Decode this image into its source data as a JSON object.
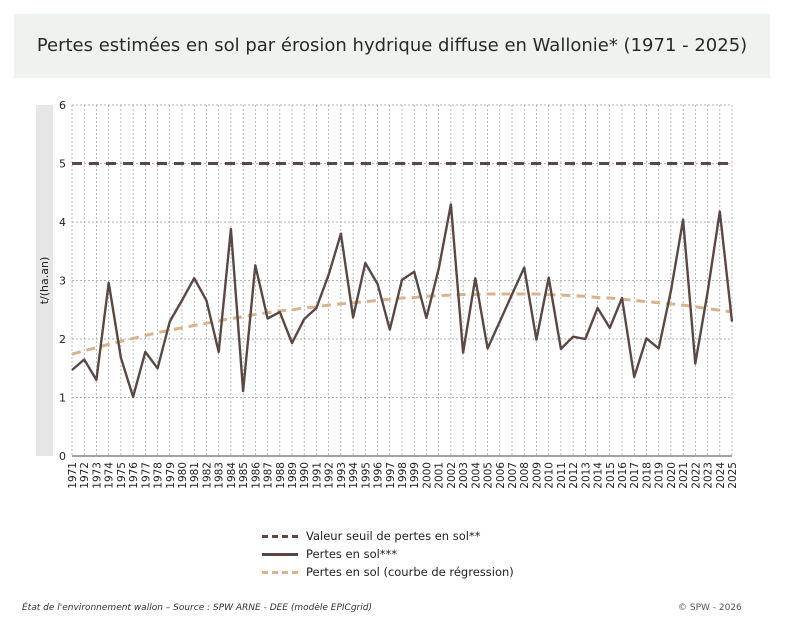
{
  "colors": {
    "background": "#ffffff",
    "title_bg": "#eef3f0",
    "threshold": "#5a4844",
    "series": "#5a4844",
    "regression": "#d8b48a",
    "ylabel_band": "#e6e6e6",
    "grid": "#9a9a9a"
  },
  "header": {
    "title": "Pertes estimées en sol par érosion hydrique diffuse en Wallonie* (1971 - 2025)"
  },
  "footer": {
    "source": "État de l'environnement wallon – Source : SPW ARNE - DEE (modèle EPICgrid)",
    "copyright": "© SPW - 2026"
  },
  "chart_data": {
    "type": "line",
    "title": "Pertes estimées en sol par érosion hydrique diffuse en Wallonie* (1971 - 2025)",
    "xlabel": "",
    "ylabel": "t/(ha.an)",
    "ylim": [
      0,
      6
    ],
    "yticks": [
      0,
      1,
      2,
      3,
      4,
      5,
      6
    ],
    "grid": true,
    "legend_position": "bottom",
    "x": [
      1971,
      1972,
      1973,
      1974,
      1975,
      1976,
      1977,
      1978,
      1979,
      1980,
      1981,
      1982,
      1983,
      1984,
      1985,
      1986,
      1987,
      1988,
      1989,
      1990,
      1991,
      1992,
      1993,
      1994,
      1995,
      1996,
      1997,
      1998,
      1999,
      2000,
      2001,
      2002,
      2003,
      2004,
      2005,
      2006,
      2007,
      2008,
      2009,
      2010,
      2011,
      2012,
      2013,
      2014,
      2015,
      2016,
      2017,
      2018,
      2019,
      2020,
      2021,
      2022,
      2023,
      2024,
      2025
    ],
    "series": [
      {
        "name": "Valeur seuil de pertes en sol**",
        "style": "dashed",
        "values": [
          5,
          5,
          5,
          5,
          5,
          5,
          5,
          5,
          5,
          5,
          5,
          5,
          5,
          5,
          5,
          5,
          5,
          5,
          5,
          5,
          5,
          5,
          5,
          5,
          5,
          5,
          5,
          5,
          5,
          5,
          5,
          5,
          5,
          5,
          5,
          5,
          5,
          5,
          5,
          5,
          5,
          5,
          5,
          5,
          5,
          5,
          5,
          5,
          5,
          5,
          5,
          5,
          5,
          5,
          5
        ]
      },
      {
        "name": "Pertes en sol***",
        "style": "solid",
        "values": [
          1.47,
          1.65,
          1.3,
          2.96,
          1.68,
          1.01,
          1.78,
          1.5,
          2.3,
          2.66,
          3.04,
          2.66,
          1.78,
          3.88,
          1.11,
          3.26,
          2.35,
          2.46,
          1.93,
          2.34,
          2.53,
          3.1,
          3.8,
          2.37,
          3.3,
          2.94,
          2.16,
          3.01,
          3.15,
          2.36,
          3.2,
          4.3,
          1.77,
          3.04,
          1.84,
          2.3,
          2.76,
          3.22,
          1.99,
          3.05,
          1.83,
          2.04,
          2.0,
          2.53,
          2.19,
          2.7,
          1.35,
          2.01,
          1.84,
          2.82,
          4.04,
          1.58,
          2.8,
          4.18,
          2.3
        ]
      },
      {
        "name": "Pertes en sol (courbe de régression)",
        "style": "dashed",
        "values": [
          1.74,
          1.8,
          1.85,
          1.91,
          1.96,
          2.01,
          2.06,
          2.11,
          2.15,
          2.19,
          2.23,
          2.27,
          2.31,
          2.35,
          2.38,
          2.42,
          2.45,
          2.48,
          2.5,
          2.53,
          2.55,
          2.58,
          2.6,
          2.62,
          2.64,
          2.66,
          2.68,
          2.7,
          2.71,
          2.73,
          2.74,
          2.75,
          2.76,
          2.76,
          2.77,
          2.77,
          2.77,
          2.77,
          2.77,
          2.76,
          2.75,
          2.74,
          2.73,
          2.71,
          2.7,
          2.68,
          2.66,
          2.64,
          2.62,
          2.6,
          2.58,
          2.55,
          2.52,
          2.49,
          2.46
        ]
      }
    ]
  }
}
